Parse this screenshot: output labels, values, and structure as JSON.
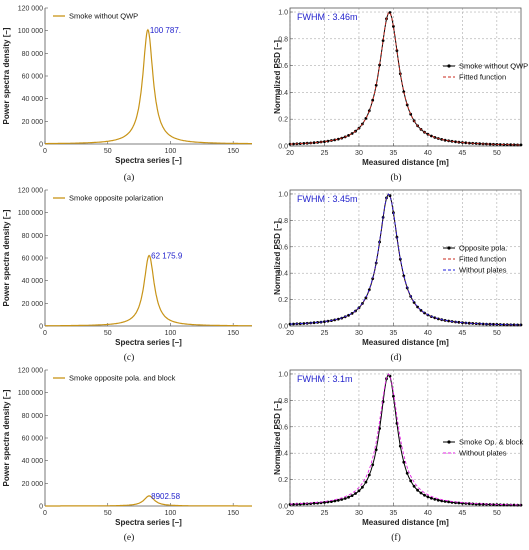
{
  "colors": {
    "orange": "#c89418",
    "black": "#000000",
    "red": "#c8281e",
    "blue": "#1e1edc",
    "magenta": "#e020e0",
    "fwhm": "#2222cc",
    "grid": "#9a9a9a"
  },
  "chart_data": [
    {
      "type": "line",
      "panel_label": "(a)",
      "xlabel": "Spectra series [–]",
      "ylabel": "Power spectra density [–]",
      "xlim": [
        0,
        165
      ],
      "ylim": [
        0,
        120000
      ],
      "xticks": [
        0,
        50,
        100,
        150
      ],
      "yticks": [
        0,
        20000,
        40000,
        60000,
        80000,
        100000,
        120000
      ],
      "ytick_labels": [
        "0",
        "20 000",
        "40 000",
        "60 000",
        "80 000",
        "100 000",
        "120 000"
      ],
      "series": [
        {
          "name": "Smoke without QWP",
          "peak_x": 82,
          "peak_y": 100787,
          "width": 5
        }
      ],
      "annotation": {
        "text": "100 787.",
        "x": 82,
        "y": 100787
      }
    },
    {
      "type": "line",
      "panel_label": "(b)",
      "xlabel": "Measured distance [m]",
      "ylabel": "Normalized PSD [–]",
      "xlim": [
        20,
        53.5
      ],
      "ylim": [
        0,
        1.03
      ],
      "xticks": [
        20,
        25,
        30,
        35,
        40,
        45,
        50
      ],
      "yticks": [
        0.0,
        0.2,
        0.4,
        0.6,
        0.8,
        1.0
      ],
      "grid": true,
      "fwhm_text": "FWHM : 3.46m",
      "peak": 34.4,
      "halfwidth": 1.73,
      "series": [
        {
          "name": "Smoke without QWP",
          "style": "markers",
          "halfwidth": 1.73,
          "color": "#000000"
        },
        {
          "name": "Fitted function",
          "style": "dashed",
          "halfwidth": 1.73,
          "color": "#c8281e"
        }
      ]
    },
    {
      "type": "line",
      "panel_label": "(c)",
      "xlabel": "Spectra series [–]",
      "ylabel": "Power spectra density [–]",
      "xlim": [
        0,
        165
      ],
      "ylim": [
        0,
        120000
      ],
      "xticks": [
        0,
        50,
        100,
        150
      ],
      "yticks": [
        0,
        20000,
        40000,
        60000,
        80000,
        100000,
        120000
      ],
      "ytick_labels": [
        "0",
        "20 000",
        "40 000",
        "60 000",
        "80 000",
        "100 000",
        "120 000"
      ],
      "series": [
        {
          "name": "Smoke opposite polarization",
          "peak_x": 83,
          "peak_y": 62175.9,
          "width": 5
        }
      ],
      "annotation": {
        "text": "62 175.9",
        "x": 83,
        "y": 62175.9
      }
    },
    {
      "type": "line",
      "panel_label": "(d)",
      "xlabel": "Measured distance [m]",
      "ylabel": "Normalized PSD [–]",
      "xlim": [
        20,
        53.5
      ],
      "ylim": [
        0,
        1.03
      ],
      "xticks": [
        20,
        25,
        30,
        35,
        40,
        45,
        50
      ],
      "yticks": [
        0.0,
        0.2,
        0.4,
        0.6,
        0.8,
        1.0
      ],
      "grid": true,
      "fwhm_text": "FWHM : 3.45m",
      "peak": 34.3,
      "halfwidth": 1.72,
      "series": [
        {
          "name": "Opposite pola.",
          "style": "markers",
          "halfwidth": 1.72,
          "color": "#000000"
        },
        {
          "name": "Fitted function",
          "style": "dashed",
          "halfwidth": 1.72,
          "color": "#c8281e"
        },
        {
          "name": "Without plates",
          "style": "dashed",
          "halfwidth": 1.74,
          "color": "#1e1edc"
        }
      ]
    },
    {
      "type": "line",
      "panel_label": "(e)",
      "xlabel": "Spectra series [–]",
      "ylabel": "Power spectra density [–]",
      "xlim": [
        0,
        165
      ],
      "ylim": [
        0,
        120000
      ],
      "xticks": [
        0,
        50,
        100,
        150
      ],
      "yticks": [
        0,
        20000,
        40000,
        60000,
        80000,
        100000,
        120000
      ],
      "ytick_labels": [
        "0",
        "20 000",
        "40 000",
        "60 000",
        "80 000",
        "100 000",
        "120 000"
      ],
      "series": [
        {
          "name": "Smoke opposite pola. and block",
          "peak_x": 83,
          "peak_y": 8902.58,
          "width": 5
        }
      ],
      "annotation": {
        "text": "8902.58",
        "x": 83,
        "y": 8902.58
      }
    },
    {
      "type": "line",
      "panel_label": "(f)",
      "xlabel": "Measured distance [m]",
      "ylabel": "Normalized PSD [–]",
      "xlim": [
        20,
        53.5
      ],
      "ylim": [
        0,
        1.03
      ],
      "xticks": [
        20,
        25,
        30,
        35,
        40,
        45,
        50
      ],
      "yticks": [
        0.0,
        0.2,
        0.4,
        0.6,
        0.8,
        1.0
      ],
      "grid": true,
      "fwhm_text": "FWHM : 3.1m",
      "peak": 34.3,
      "halfwidth": 1.55,
      "series": [
        {
          "name": "Smoke Op. & block",
          "style": "markers",
          "halfwidth": 1.55,
          "color": "#000000"
        },
        {
          "name": "Without plates",
          "style": "dashed",
          "halfwidth": 1.74,
          "color": "#e020e0"
        }
      ]
    }
  ]
}
